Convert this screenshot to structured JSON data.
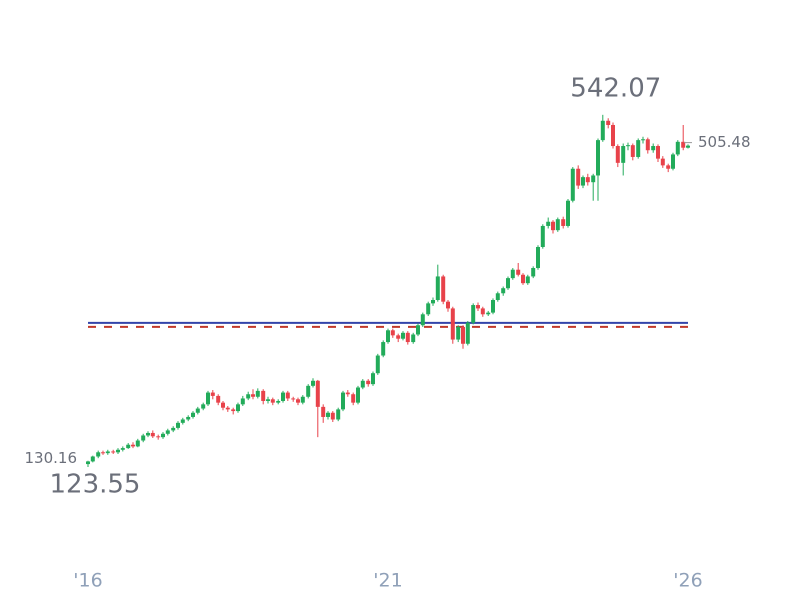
{
  "chart_data": {
    "type": "candlestick",
    "up_color": "#22ab5a",
    "down_color": "#e8424a",
    "xlim": [
      2015,
      2027
    ],
    "ylim": [
      13,
      631
    ],
    "xticks": [
      {
        "value": 2016,
        "label": "'16"
      },
      {
        "value": 2021,
        "label": "'21"
      },
      {
        "value": 2026,
        "label": "'26"
      }
    ],
    "x": [
      2016,
      2016.08,
      2016.17,
      2016.25,
      2016.33,
      2016.42,
      2016.5,
      2016.58,
      2016.67,
      2016.75,
      2016.83,
      2016.92,
      2017,
      2017.08,
      2017.17,
      2017.25,
      2017.33,
      2017.42,
      2017.5,
      2017.58,
      2017.67,
      2017.75,
      2017.83,
      2017.92,
      2018,
      2018.08,
      2018.17,
      2018.25,
      2018.33,
      2018.42,
      2018.5,
      2018.58,
      2018.67,
      2018.75,
      2018.83,
      2018.92,
      2019,
      2019.08,
      2019.17,
      2019.25,
      2019.33,
      2019.42,
      2019.5,
      2019.58,
      2019.67,
      2019.75,
      2019.83,
      2019.92,
      2020,
      2020.08,
      2020.17,
      2020.25,
      2020.33,
      2020.42,
      2020.5,
      2020.58,
      2020.67,
      2020.75,
      2020.83,
      2020.92,
      2021,
      2021.08,
      2021.17,
      2021.25,
      2021.33,
      2021.42,
      2021.5,
      2021.58,
      2021.67,
      2021.75,
      2021.83,
      2021.92,
      2022,
      2022.08,
      2022.17,
      2022.25,
      2022.33,
      2022.42,
      2022.5,
      2022.58,
      2022.67,
      2022.75,
      2022.83,
      2022.92,
      2023,
      2023.08,
      2023.17,
      2023.25,
      2023.33,
      2023.42,
      2023.5,
      2023.58,
      2023.67,
      2023.75,
      2023.83,
      2023.92,
      2024,
      2024.08,
      2024.17,
      2024.25,
      2024.33,
      2024.42,
      2024.5,
      2024.58,
      2024.67,
      2024.75,
      2024.83,
      2024.92,
      2025,
      2025.08,
      2025.17,
      2025.25,
      2025.33,
      2025.42,
      2025.5,
      2025.58,
      2025.67,
      2025.75,
      2025.83,
      2025.92,
      2026
    ],
    "ohlc": [
      [
        127,
        131,
        123.55,
        130.16
      ],
      [
        130.16,
        137,
        129,
        136
      ],
      [
        136,
        143,
        134,
        141
      ],
      [
        141,
        143,
        138,
        140
      ],
      [
        140,
        144,
        138,
        142
      ],
      [
        142,
        144,
        139,
        141
      ],
      [
        141,
        146,
        139,
        144
      ],
      [
        144,
        148,
        142,
        146
      ],
      [
        146,
        152,
        145,
        150
      ],
      [
        150,
        153,
        146,
        148
      ],
      [
        148,
        157,
        147,
        155
      ],
      [
        155,
        163,
        153,
        161
      ],
      [
        161,
        166,
        159,
        164
      ],
      [
        164,
        167,
        158,
        160
      ],
      [
        160,
        162,
        156,
        159
      ],
      [
        159,
        165,
        157,
        163
      ],
      [
        163,
        169,
        161,
        167
      ],
      [
        167,
        172,
        165,
        170
      ],
      [
        170,
        178,
        168,
        176
      ],
      [
        176,
        182,
        174,
        180
      ],
      [
        180,
        185,
        178,
        183
      ],
      [
        183,
        190,
        181,
        188
      ],
      [
        188,
        195,
        186,
        193
      ],
      [
        193,
        200,
        191,
        198
      ],
      [
        198,
        214,
        196,
        212
      ],
      [
        212,
        215,
        204,
        208
      ],
      [
        208,
        210,
        197,
        200
      ],
      [
        200,
        202,
        191,
        194
      ],
      [
        194,
        196,
        189,
        192
      ],
      [
        192,
        194,
        186,
        190
      ],
      [
        190,
        200,
        188,
        198
      ],
      [
        198,
        208,
        196,
        205
      ],
      [
        205,
        213,
        203,
        210
      ],
      [
        210,
        216,
        204,
        207
      ],
      [
        207,
        217,
        205,
        214
      ],
      [
        214,
        216,
        198,
        202
      ],
      [
        202,
        207,
        199,
        204
      ],
      [
        204,
        206,
        197,
        200
      ],
      [
        200,
        204,
        198,
        202
      ],
      [
        202,
        214,
        200,
        212
      ],
      [
        212,
        214,
        202,
        205
      ],
      [
        205,
        207,
        201,
        204
      ],
      [
        204,
        206,
        197,
        200
      ],
      [
        200,
        209,
        198,
        207
      ],
      [
        207,
        222,
        205,
        220
      ],
      [
        220,
        229,
        218,
        226
      ],
      [
        226,
        227,
        159,
        195
      ],
      [
        195,
        198,
        176,
        183
      ],
      [
        183,
        190,
        180,
        188
      ],
      [
        188,
        190,
        177,
        180
      ],
      [
        180,
        194,
        178,
        192
      ],
      [
        192,
        214,
        190,
        212
      ],
      [
        212,
        215,
        207,
        210
      ],
      [
        210,
        212,
        197,
        200
      ],
      [
        200,
        220,
        198,
        218
      ],
      [
        218,
        228,
        216,
        226
      ],
      [
        226,
        228,
        219,
        222
      ],
      [
        222,
        237,
        220,
        235
      ],
      [
        235,
        258,
        233,
        256
      ],
      [
        256,
        274,
        254,
        272
      ],
      [
        272,
        288,
        270,
        286
      ],
      [
        286,
        288,
        277,
        280
      ],
      [
        280,
        282,
        272,
        276
      ],
      [
        276,
        285,
        274,
        283
      ],
      [
        283,
        285,
        269,
        272
      ],
      [
        272,
        283,
        270,
        281
      ],
      [
        281,
        294,
        279,
        292
      ],
      [
        292,
        307,
        290,
        305
      ],
      [
        305,
        320,
        303,
        318
      ],
      [
        318,
        325,
        315,
        322
      ],
      [
        322,
        364,
        320,
        350
      ],
      [
        350,
        352,
        317,
        320
      ],
      [
        320,
        322,
        308,
        312
      ],
      [
        312,
        314,
        270,
        275
      ],
      [
        275,
        292,
        272,
        290
      ],
      [
        290,
        292,
        264,
        270
      ],
      [
        270,
        297,
        268,
        295
      ],
      [
        295,
        318,
        293,
        316
      ],
      [
        316,
        319,
        309,
        312
      ],
      [
        312,
        314,
        302,
        305
      ],
      [
        305,
        309,
        303,
        307
      ],
      [
        307,
        324,
        305,
        322
      ],
      [
        322,
        332,
        320,
        330
      ],
      [
        330,
        338,
        327,
        336
      ],
      [
        336,
        350,
        334,
        348
      ],
      [
        348,
        360,
        346,
        358
      ],
      [
        358,
        366,
        350,
        352
      ],
      [
        352,
        354,
        340,
        342
      ],
      [
        342,
        352,
        340,
        350
      ],
      [
        350,
        362,
        348,
        360
      ],
      [
        360,
        387,
        358,
        385
      ],
      [
        385,
        412,
        383,
        410
      ],
      [
        410,
        420,
        407,
        415
      ],
      [
        415,
        417,
        401,
        405
      ],
      [
        405,
        420,
        403,
        418
      ],
      [
        418,
        421,
        407,
        410
      ],
      [
        410,
        442,
        408,
        440
      ],
      [
        440,
        480,
        438,
        478
      ],
      [
        478,
        482,
        454,
        458
      ],
      [
        458,
        470,
        455,
        468
      ],
      [
        468,
        472,
        458,
        462
      ],
      [
        462,
        472,
        440,
        470
      ],
      [
        470,
        514,
        440,
        512
      ],
      [
        512,
        542.07,
        510,
        535
      ],
      [
        535,
        538,
        526,
        530
      ],
      [
        530,
        533,
        502,
        505
      ],
      [
        505,
        507,
        480,
        485
      ],
      [
        485,
        508,
        470,
        505
      ],
      [
        505,
        509,
        500,
        506
      ],
      [
        506,
        508,
        488,
        492
      ],
      [
        492,
        514,
        490,
        512
      ],
      [
        512,
        516,
        508,
        513
      ],
      [
        513,
        515,
        496,
        500
      ],
      [
        500,
        508,
        497,
        505
      ],
      [
        505,
        507,
        486,
        490
      ],
      [
        490,
        493,
        479,
        482
      ],
      [
        482,
        484,
        474,
        478
      ],
      [
        478,
        497,
        476,
        495
      ],
      [
        495,
        512,
        493,
        510
      ],
      [
        510,
        530,
        500,
        503
      ],
      [
        503,
        507,
        502,
        505.48
      ]
    ],
    "hlines": [
      {
        "value": 294.8,
        "color": "#3344aa",
        "style": "solid"
      },
      {
        "value": 290,
        "color": "#c0392b",
        "style": "dashed"
      }
    ],
    "annotations": [
      {
        "kind": "max",
        "x": 2024.58,
        "value": 542.07
      },
      {
        "kind": "min",
        "x": 2016,
        "value": 123.55
      },
      {
        "kind": "first",
        "x": 2016,
        "value": 130.16
      },
      {
        "kind": "last",
        "x": 2026,
        "value": 505.48
      }
    ]
  }
}
